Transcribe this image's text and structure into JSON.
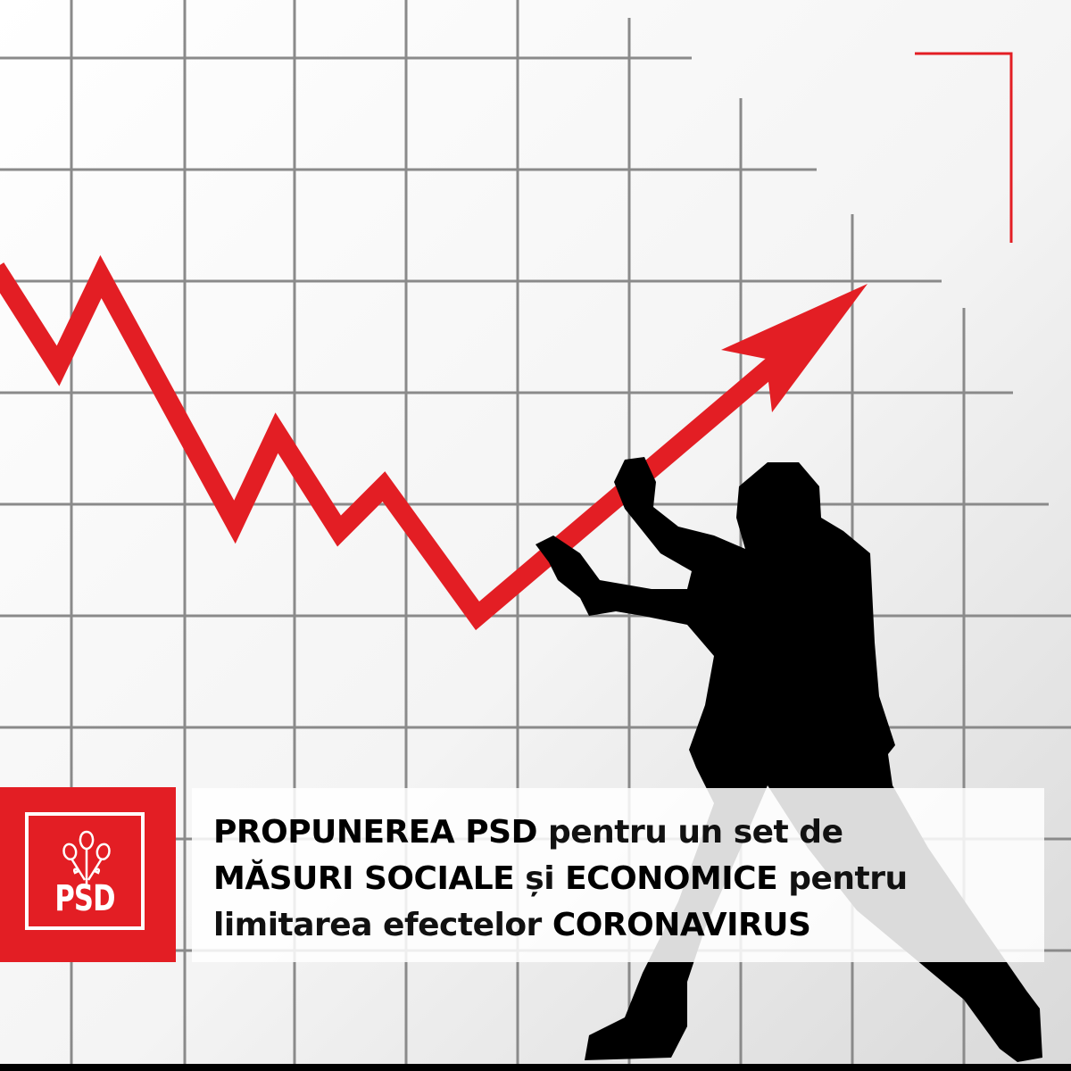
{
  "headline": {
    "line1_bold": "PROPUNEREA PSD",
    "line1_rest": " pentru un set de",
    "line2_bold1": "MĂSURI SOCIALE",
    "line2_mid": " și ",
    "line2_bold2": "ECONOMICE",
    "line2_rest": " pentru",
    "line3_rest": "limitarea efectelor ",
    "line3_bold": "CORONAVIRUS"
  },
  "logo": {
    "text": "PSD",
    "icon": "roses-icon"
  },
  "colors": {
    "brand_red": "#e31e24",
    "grid": "#8a8a8a",
    "silhouette": "#000000"
  }
}
